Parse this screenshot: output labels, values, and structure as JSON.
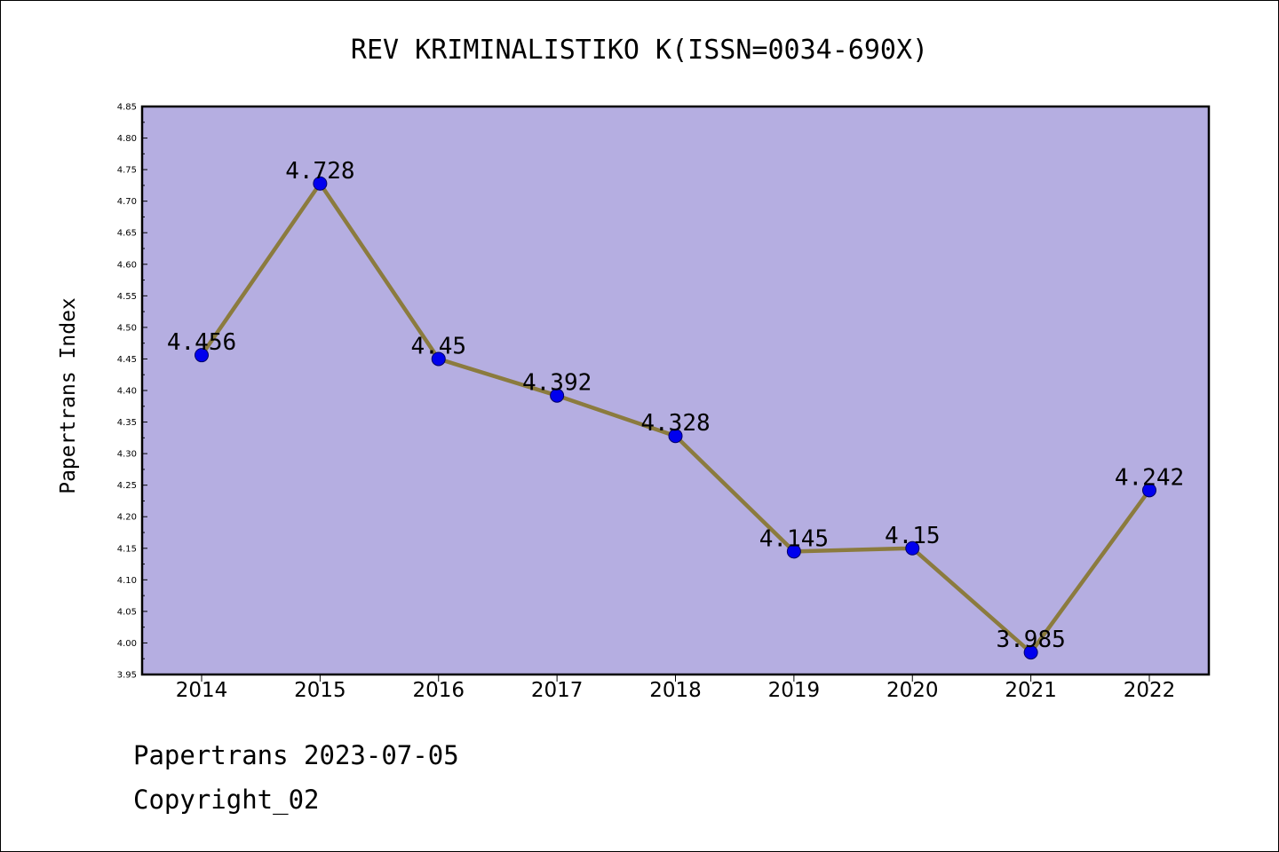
{
  "chart_data": {
    "type": "line",
    "title": "REV KRIMINALISTIKO K(ISSN=0034-690X)",
    "xlabel": "",
    "ylabel": "Papertrans Index",
    "categories": [
      "2014",
      "2015",
      "2016",
      "2017",
      "2018",
      "2019",
      "2020",
      "2021",
      "2022"
    ],
    "values": [
      4.456,
      4.728,
      4.45,
      4.392,
      4.328,
      4.145,
      4.15,
      3.985,
      4.242
    ],
    "value_labels": [
      "4.456",
      "4.728",
      "4.45",
      "4.392",
      "4.328",
      "4.145",
      "4.15",
      "3.985",
      "4.242"
    ],
    "ylim": [
      3.95,
      4.85
    ],
    "yticks": [
      "3.95",
      "4.00",
      "4.05",
      "4.10",
      "4.15",
      "4.20",
      "4.25",
      "4.30",
      "4.35",
      "4.40",
      "4.45",
      "4.50",
      "4.55",
      "4.60",
      "4.65",
      "4.70",
      "4.75",
      "4.80",
      "4.85"
    ],
    "grid": false,
    "colors": {
      "plot_background": "#b5aee1",
      "line": "#8b7b3e",
      "marker": "#0000ee"
    }
  },
  "footer": {
    "line1": "Papertrans 2023-07-05",
    "line2": "Copyright_02"
  }
}
